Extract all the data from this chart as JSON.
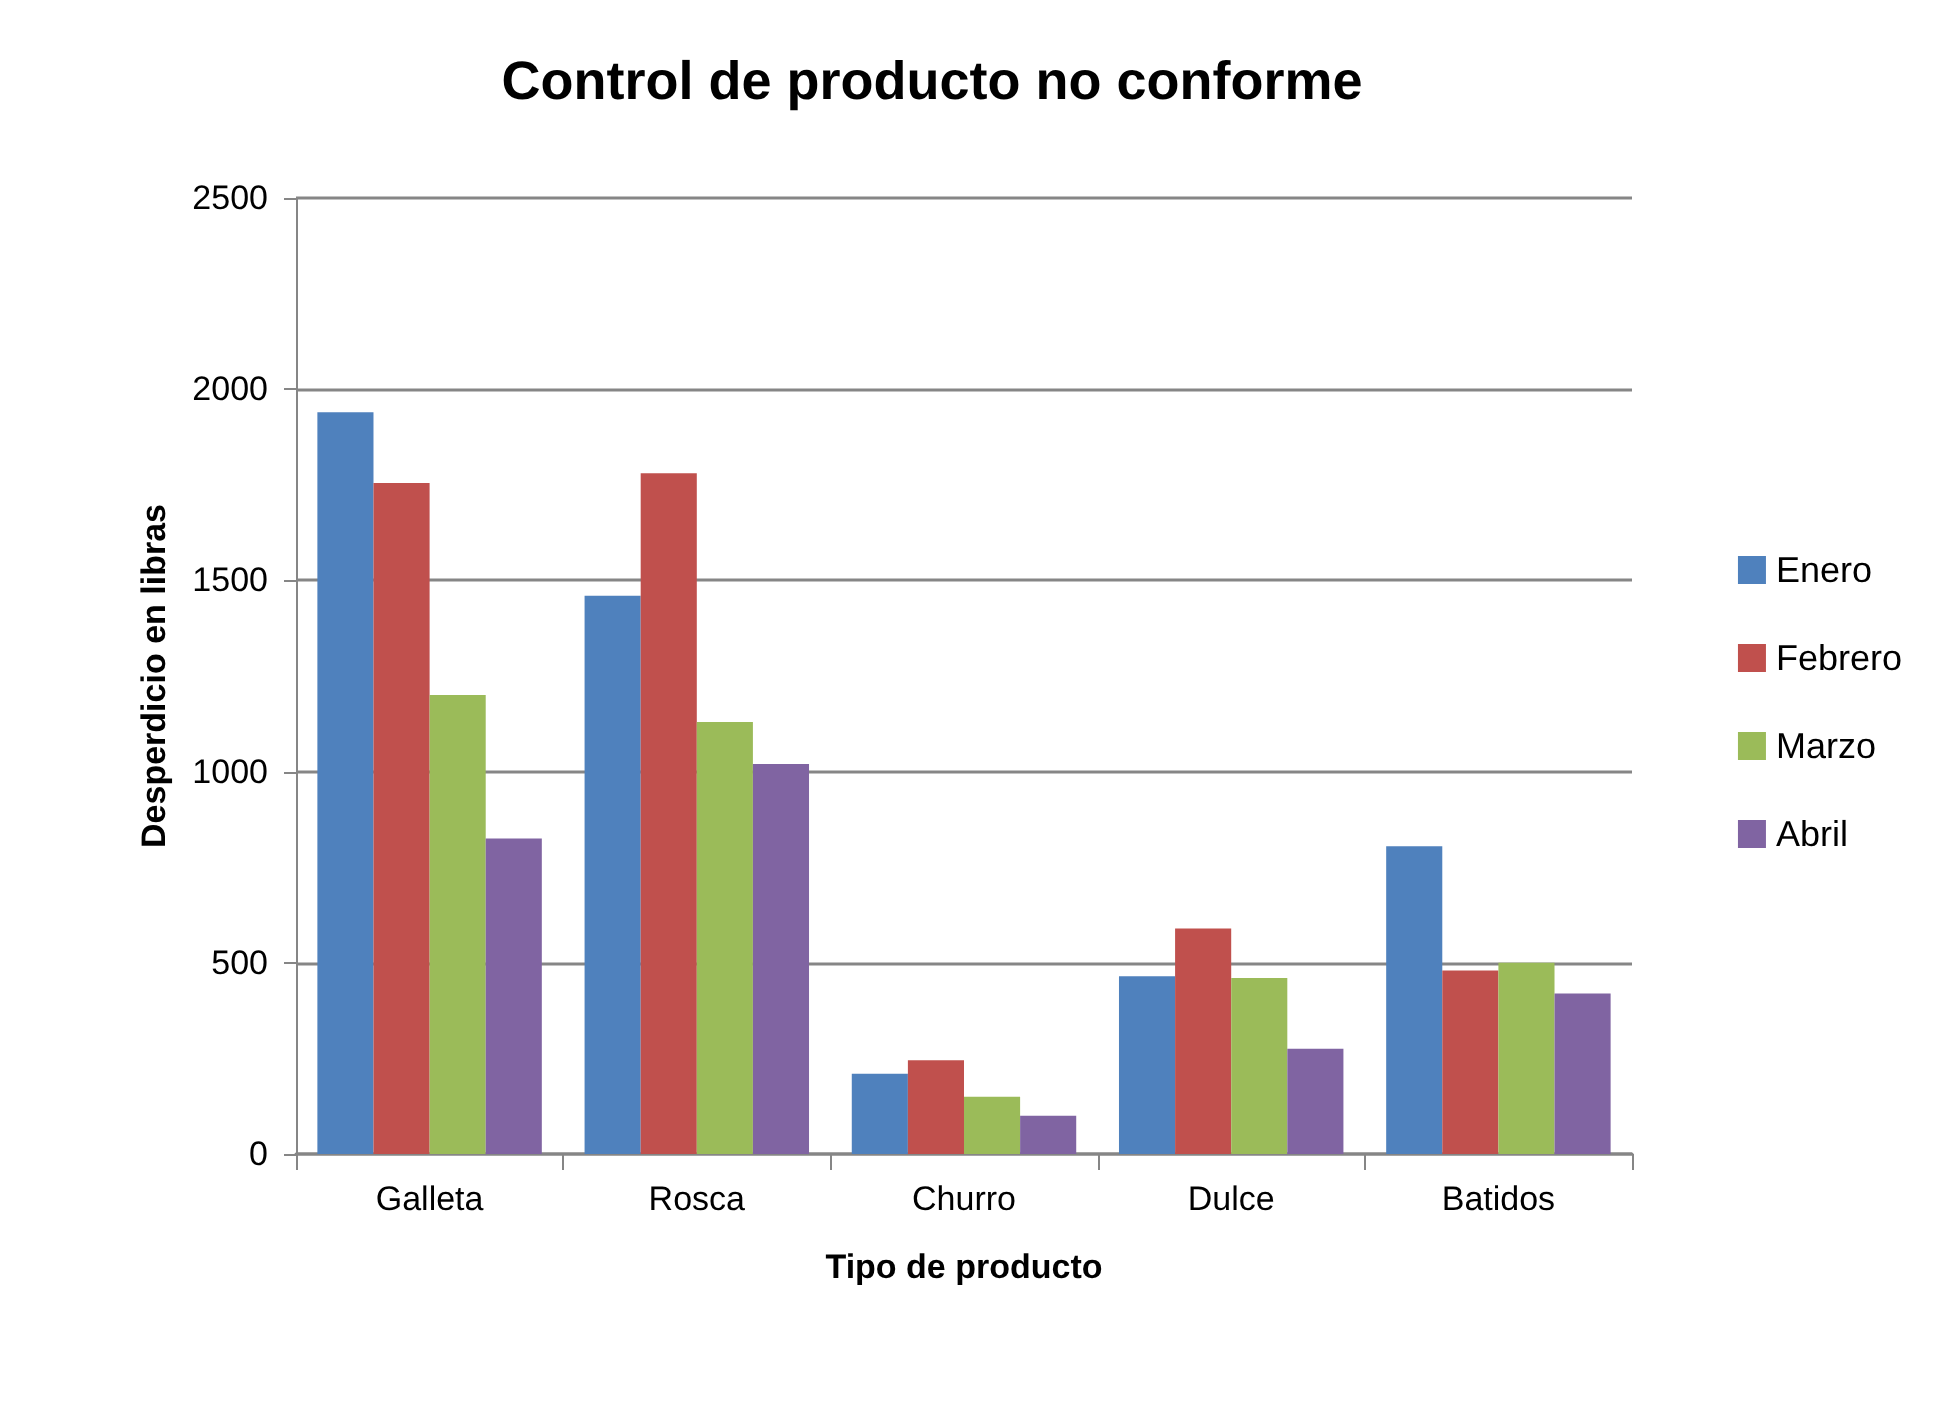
{
  "chart_data": {
    "type": "bar",
    "title": "Control de producto no conforme",
    "xlabel": "Tipo de producto",
    "ylabel": "Desperdicio en libras",
    "categories": [
      "Galleta",
      "Rosca",
      "Churro",
      "Dulce",
      "Batidos"
    ],
    "series": [
      {
        "name": "Enero",
        "color": "#4f81bd",
        "values": [
          1940,
          1460,
          210,
          465,
          805
        ]
      },
      {
        "name": "Febrero",
        "color": "#c0504d",
        "values": [
          1755,
          1780,
          245,
          590,
          480
        ]
      },
      {
        "name": "Marzo",
        "color": "#9bbb59",
        "values": [
          1200,
          1130,
          150,
          460,
          500
        ]
      },
      {
        "name": "Abril",
        "color": "#8064a2",
        "values": [
          825,
          1020,
          100,
          275,
          420
        ]
      }
    ],
    "ylim": [
      0,
      2500
    ],
    "yticks": [
      0,
      500,
      1000,
      1500,
      2000,
      2500
    ],
    "grid": "y",
    "legend": "right"
  }
}
